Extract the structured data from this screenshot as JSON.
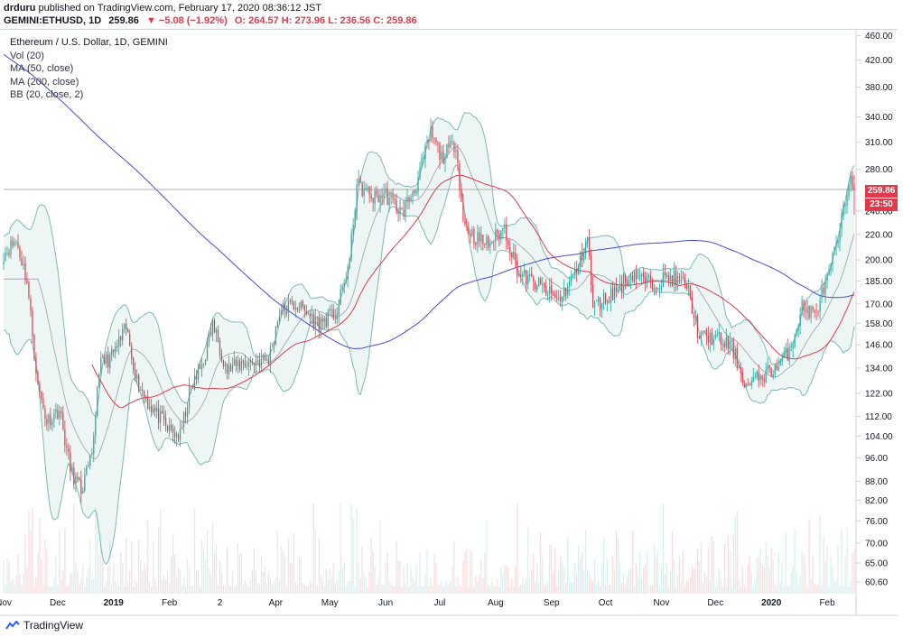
{
  "publisher": {
    "user": "drduru",
    "text": "published on TradingView.com, February 17, 2020 08:36:12 JST"
  },
  "ticker": {
    "symbol": "GEMINI:ETHUSD, 1D",
    "last": "259.86",
    "change": "▼ −5.08 (−1.92%)",
    "ohlc": "O: 264.57 H: 273.96 L: 236.56 C: 259.86"
  },
  "legend": {
    "title": "Ethereum / U.S. Dollar, 1D, GEMINI",
    "items": [
      "Vol (20)",
      "MA (50, close)",
      "MA (200, close)",
      "BB (20, close, 2)"
    ]
  },
  "price_labels": {
    "last": "259.86",
    "countdown": "23:50"
  },
  "footer": {
    "brand": "TradingView"
  },
  "colors": {
    "up": "#26a69a",
    "down": "#e0394a",
    "ma50": "#e0394a",
    "ma200": "#4a4ad6",
    "bb": "#7fb9b2"
  },
  "chart_data": {
    "type": "candlestick",
    "instrument": "Ethereum / U.S. Dollar, 1D, GEMINI",
    "y_scale": "log",
    "ylim": [
      58,
      470
    ],
    "y_ticks": [
      "460.00",
      "420.00",
      "380.00",
      "340.00",
      "310.00",
      "280.00",
      "240.00",
      "220.00",
      "200.00",
      "185.00",
      "170.00",
      "158.00",
      "146.00",
      "134.00",
      "122.00",
      "112.00",
      "104.00",
      "96.00",
      "88.00",
      "82.00",
      "76.00",
      "70.00",
      "65.00",
      "60.60"
    ],
    "x_ticks": [
      "Nov",
      "Dec",
      "2019",
      "Feb",
      "2",
      "Apr",
      "May",
      "Jun",
      "Jul",
      "Aug",
      "Sep",
      "Oct",
      "Nov",
      "Dec",
      "2020",
      "Feb"
    ],
    "x_tick_dates": [
      "2018-11-01",
      "2018-12-01",
      "2019-01-01",
      "2019-02-01",
      "2019-03-01",
      "2019-04-01",
      "2019-05-01",
      "2019-06-01",
      "2019-07-01",
      "2019-08-01",
      "2019-09-01",
      "2019-10-01",
      "2019-11-01",
      "2019-12-01",
      "2020-01-01",
      "2020-02-01"
    ],
    "x_range": [
      "2018-11-01",
      "2020-02-16"
    ],
    "waypoints": [
      [
        "2018-11-01",
        205
      ],
      [
        "2018-11-08",
        215
      ],
      [
        "2018-11-14",
        185
      ],
      [
        "2018-11-20",
        125
      ],
      [
        "2018-11-25",
        110
      ],
      [
        "2018-12-02",
        115
      ],
      [
        "2018-12-08",
        92
      ],
      [
        "2018-12-14",
        85
      ],
      [
        "2018-12-20",
        96
      ],
      [
        "2018-12-24",
        135
      ],
      [
        "2018-12-31",
        140
      ],
      [
        "2019-01-08",
        155
      ],
      [
        "2019-01-14",
        128
      ],
      [
        "2019-01-20",
        118
      ],
      [
        "2019-02-01",
        106
      ],
      [
        "2019-02-07",
        104
      ],
      [
        "2019-02-12",
        122
      ],
      [
        "2019-02-20",
        138
      ],
      [
        "2019-02-25",
        158
      ],
      [
        "2019-03-05",
        133
      ],
      [
        "2019-03-15",
        137
      ],
      [
        "2019-03-28",
        138
      ],
      [
        "2019-04-03",
        165
      ],
      [
        "2019-04-12",
        170
      ],
      [
        "2019-04-25",
        158
      ],
      [
        "2019-05-05",
        165
      ],
      [
        "2019-05-12",
        200
      ],
      [
        "2019-05-16",
        265
      ],
      [
        "2019-05-25",
        252
      ],
      [
        "2019-06-01",
        255
      ],
      [
        "2019-06-10",
        238
      ],
      [
        "2019-06-18",
        265
      ],
      [
        "2019-06-26",
        320
      ],
      [
        "2019-07-02",
        292
      ],
      [
        "2019-07-10",
        310
      ],
      [
        "2019-07-14",
        230
      ],
      [
        "2019-07-20",
        218
      ],
      [
        "2019-07-28",
        212
      ],
      [
        "2019-08-06",
        225
      ],
      [
        "2019-08-14",
        190
      ],
      [
        "2019-08-25",
        182
      ],
      [
        "2019-09-05",
        172
      ],
      [
        "2019-09-15",
        192
      ],
      [
        "2019-09-21",
        218
      ],
      [
        "2019-09-24",
        168
      ],
      [
        "2019-10-06",
        178
      ],
      [
        "2019-10-16",
        190
      ],
      [
        "2019-10-26",
        183
      ],
      [
        "2019-11-05",
        188
      ],
      [
        "2019-11-15",
        183
      ],
      [
        "2019-11-22",
        150
      ],
      [
        "2019-12-01",
        150
      ],
      [
        "2019-12-10",
        145
      ],
      [
        "2019-12-18",
        125
      ],
      [
        "2019-12-26",
        130
      ],
      [
        "2020-01-05",
        135
      ],
      [
        "2020-01-12",
        145
      ],
      [
        "2020-01-18",
        168
      ],
      [
        "2020-01-25",
        163
      ],
      [
        "2020-02-02",
        190
      ],
      [
        "2020-02-08",
        222
      ],
      [
        "2020-02-14",
        278
      ],
      [
        "2020-02-16",
        259.86
      ]
    ],
    "last_candle": {
      "open": 264.57,
      "high": 273.96,
      "low": 236.56,
      "close": 259.86
    },
    "series": [
      {
        "name": "MA (50, close)"
      },
      {
        "name": "MA (200, close)"
      },
      {
        "name": "BB (20, close, 2)"
      },
      {
        "name": "Vol (20)"
      }
    ]
  }
}
